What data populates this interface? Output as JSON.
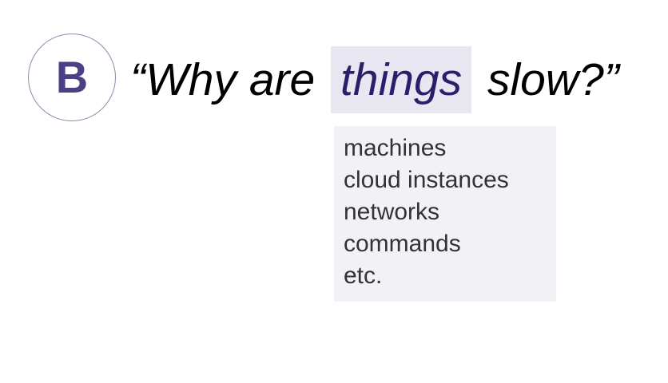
{
  "badge": {
    "letter": "B"
  },
  "headline": {
    "prefix": "“Why are",
    "highlight": "things",
    "suffix": "slow?”"
  },
  "dropdown": {
    "items": [
      "machines",
      "cloud instances",
      "networks",
      "commands",
      "etc."
    ]
  },
  "colors": {
    "accent": "#4b3f86",
    "highlight_bg": "#e8e6f1",
    "highlight_text": "#2a1f6b",
    "dropdown_bg": "#f2f1f6",
    "badge_border": "#8f88ad"
  }
}
